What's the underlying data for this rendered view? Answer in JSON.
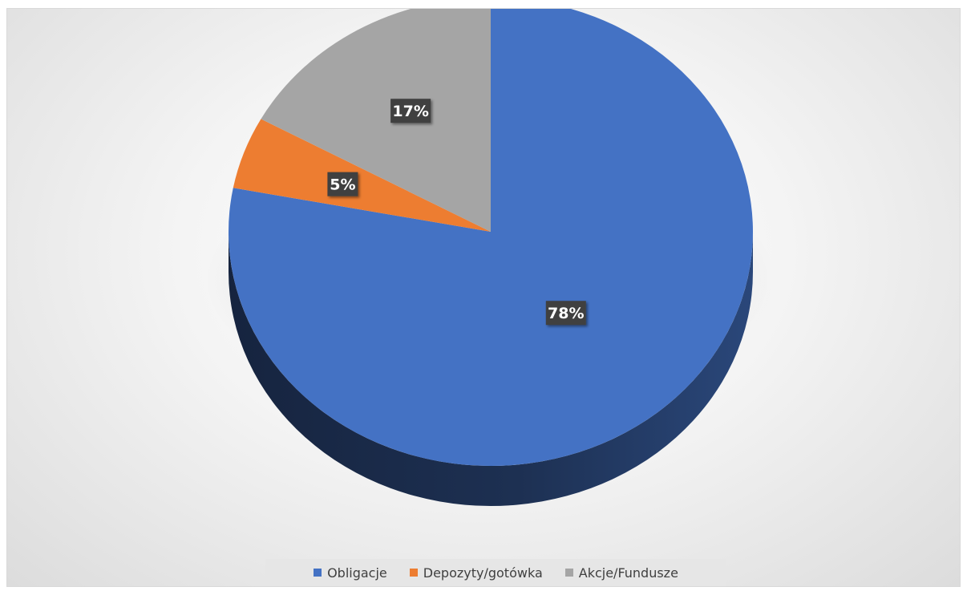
{
  "chart_data": {
    "type": "pie",
    "title": "",
    "categories": [
      "Obligacje",
      "Depozyty/gotówka",
      "Akcje/Fundusze"
    ],
    "values": [
      78,
      5,
      17
    ],
    "data_labels": [
      "78%",
      "5%",
      "17%"
    ],
    "colors": [
      "#4472c4",
      "#ed7d31",
      "#a5a5a5"
    ],
    "legend_position": "bottom",
    "style": "3d-tilted"
  },
  "legend": {
    "items": [
      {
        "label": "Obligacje",
        "color": "#4472c4"
      },
      {
        "label": "Depozyty/gotówka",
        "color": "#ed7d31"
      },
      {
        "label": "Akcje/Fundusze",
        "color": "#a5a5a5"
      }
    ]
  }
}
